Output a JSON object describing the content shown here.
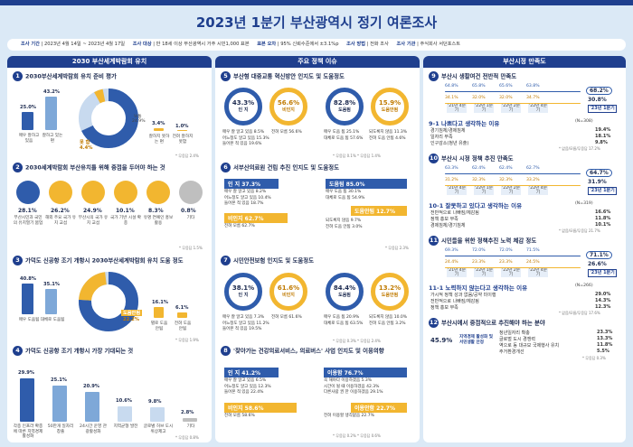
{
  "title": "2023년 1분기 부산광역시 정기 여론조사",
  "info": {
    "period_label": "조사 기간",
    "period": "2023년 4월 14일 ~ 2023년 4월 17일",
    "target_label": "조사 대상",
    "target": "만 18세 이상 부산광역시 거주 시민1,000 표본",
    "error_label": "표본 오차",
    "error": "95% 신뢰수준에서 ±3.1%p",
    "method_label": "조사 방법",
    "method": "전화 조사",
    "org_label": "조사 기관",
    "org": "주식회사 서던포스트"
  },
  "col1": {
    "header": "2030 부산세계박람회 유치",
    "q1": {
      "num": "1",
      "title": "2030부산세계박람회 유치 준비 평가",
      "bars": [
        {
          "label": "매우 잘하고 있음",
          "value": "25.0%",
          "v": 25.0
        },
        {
          "label": "잘하고 있는 편",
          "value": "43.2%",
          "v": 43.2
        }
      ],
      "good": {
        "label": "잘 함",
        "value": "68.3%"
      },
      "bad": {
        "label": "못 함",
        "value": "4.4%"
      },
      "mid_label": "보통",
      "mid_value": "24.9%",
      "bars2": [
        {
          "label": "잘하지 못하는 편",
          "value": "3.4%",
          "v": 3.4
        },
        {
          "label": "전혀 잘하지 못함",
          "value": "1.0%",
          "v": 1.0
        }
      ],
      "note": "* 무응답 2.4%"
    },
    "q2": {
      "num": "2",
      "title": "2030세계박람회 부산유치를 위해 중점을 두어야 하는 것",
      "items": [
        {
          "value": "28.1%",
          "label": "부산시민과 국민의 유치열기 붐업"
        },
        {
          "value": "26.2%",
          "label": "해외 주요 국가 유치 교섭"
        },
        {
          "value": "24.9%",
          "label": "부산시의 국가 유치 교섭"
        },
        {
          "value": "10.1%",
          "label": "국가 기반 시설 확충"
        },
        {
          "value": "8.3%",
          "label": "유명 연예인 홍보 활용"
        },
        {
          "value": "0.8%",
          "label": "기타"
        }
      ],
      "note": "* 무응답 1.5%"
    },
    "q3": {
      "num": "3",
      "title": "가덕도 신공항 조기 개항시 2030부산세계박람회 유치 도움 정도",
      "bars": [
        {
          "label": "매우 도움됨",
          "value": "40.8%",
          "v": 40.8
        },
        {
          "label": "대체로 도움됨",
          "value": "35.1%",
          "v": 35.1
        }
      ],
      "help": {
        "label": "도움됨",
        "value": "75.9%"
      },
      "nohelp": {
        "label": "도움안됨",
        "value": "22.2%"
      },
      "bars2": [
        {
          "label": "별로 도움 안됨",
          "value": "16.1%",
          "v": 16.1
        },
        {
          "label": "전혀 도움 안됨",
          "value": "6.1%",
          "v": 6.1
        }
      ],
      "note": "* 무응답 1.9%"
    },
    "q4": {
      "num": "4",
      "title": "가덕도 신공항 조기 개항시 가장 기대되는 것",
      "items": [
        {
          "value": "29.9%",
          "label": "각종 인프라 확충에 따른 지역경제 활성화",
          "v": 29.9
        },
        {
          "value": "25.1%",
          "label": "50만개 일자리 창출",
          "v": 25.1
        },
        {
          "value": "20.9%",
          "label": "24시간 운영 관광활성화",
          "v": 20.9
        },
        {
          "value": "10.6%",
          "label": "지역균형 발전",
          "v": 10.6
        },
        {
          "value": "9.8%",
          "label": "글로벌 허브 도시 위상제고",
          "v": 9.8
        },
        {
          "value": "2.8%",
          "label": "기타",
          "v": 2.8
        }
      ],
      "note": "* 무응답 0.8%"
    }
  },
  "col2": {
    "header": "주요 정책 이슈",
    "q5": {
      "num": "5",
      "title": "부산형 대중교통 혁신방안 인지도 및 도움정도",
      "c1": {
        "value": "43.3%",
        "label": "인 지"
      },
      "c2": {
        "value": "56.6%",
        "label": "비인지"
      },
      "c3": {
        "value": "82.8%",
        "label": "도움됨"
      },
      "c4": {
        "value": "15.9%",
        "label": "도움안됨"
      },
      "left_rows": [
        "매우 잘 알고 있음 8.5%",
        "어느정도 알고 있음 15.3%",
        "들어본 적 있음 19.6%",
        "전혀 모름 56.6%"
      ],
      "right_rows": [
        "매우 도움 됨 25.1%",
        "대체로 도움 됨 57.6%",
        "되도록지 않음 11.3%",
        "전혀 도움 안됨 4.6%"
      ],
      "note": "* 무응답 0.1%   * 무응답 1.4%"
    },
    "q6": {
      "num": "6",
      "title": "서부산의료원 건립 추진 인지도 및 도움정도",
      "a1": "인 지 37.3%",
      "a2": "비인지 62.7%",
      "b1": "도움됨 85.0%",
      "b2": "도움안됨 12.7%",
      "left_rows": [
        "매우 잘 알고 있음 8.2%",
        "어느정도 알고 있음 10.4%",
        "들어본 적 있음 18.7%",
        "전혀 모름 62.7%"
      ],
      "right_rows": [
        "매우 도움 됨 30.1%",
        "대체로 도움 됨 54.9%",
        "되도록지 않음 9.7%",
        "전혀 도움 안됨 3.0%"
      ],
      "note": "* 무응답 2.3%"
    },
    "q7": {
      "num": "7",
      "title": "시민안전보험 인지도 및 도움정도",
      "c1": {
        "value": "38.1%",
        "label": "인 지"
      },
      "c2": {
        "value": "61.6%",
        "label": "비인지"
      },
      "c3": {
        "value": "84.4%",
        "label": "도움됨"
      },
      "c4": {
        "value": "13.2%",
        "label": "도움안됨"
      },
      "left_rows": [
        "매우 잘 알고 있음 7.3%",
        "어느정도 알고 있음 11.2%",
        "들어본 적 있음 19.5%",
        "전혀 모름 61.6%"
      ],
      "right_rows": [
        "매우 도움 됨 20.9%",
        "대체로 도움 됨 63.5%",
        "되도록지 않음 10.0%",
        "전혀 도움 안됨 3.2%"
      ],
      "note": "* 무응답 0.3%   * 무응답 2.4%"
    },
    "q8": {
      "num": "8",
      "title": "'찾아가는 건강의료서비스, 의료버스' 사업 인지도 및 이용의향",
      "a1": "인 지 41.2%",
      "a2": "비인지 58.6%",
      "b1": "이용함 76.7%",
      "b2": "이용안함 22.7%",
      "left_rows": [
        "매우 잘 알고 있음 6.5%",
        "어느정도 알고 있음 12.3%",
        "들어본 적 있음 22.4%",
        "전혀 모름 58.6%"
      ],
      "right_rows": [
        "꼭 해야다 이용하겠음 5.3%",
        "시간이 될 때 이용하겠음 42.3%",
        "다른사람 권 한 이용하겠음 29.1%",
        "전혀 이용할 생각없음 22.7%"
      ],
      "note": "* 무응답 0.2%   * 무응답 0.6%"
    }
  },
  "col3": {
    "header": "부산시정 만족도",
    "q9": {
      "num": "9",
      "title": "부산시 생활여건 전반적 만족도",
      "good_vals": [
        "64.8%",
        "65.8%",
        "65.6%",
        "63.8%"
      ],
      "bad_vals": [
        "34.1%",
        "32.0%",
        "32.0%",
        "34.7%"
      ],
      "final_good": "68.2%",
      "final_bad": "30.8%",
      "periods": [
        "'21년 4분기",
        "'22년 1분기",
        "'22년 2분기",
        "'22년 4분기"
      ],
      "current": "'23년 1분기"
    },
    "q9_1": {
      "num": "9-1",
      "title": "나쁘다고 생각하는 이유",
      "n": "(N=308)",
      "rows": [
        [
          "경기침체/경제침체",
          "19.4%"
        ],
        [
          "일자리 부족",
          "18.1%"
        ],
        [
          "인구감소(청년 유출)",
          "9.8%"
        ]
      ],
      "note": "* 없음/모름/무응답 17.2%"
    },
    "q10": {
      "num": "10",
      "title": "부산시 시정 정책 추진 만족도",
      "good_vals": [
        "63.3%",
        "62.4%",
        "62.4%",
        "62.7%"
      ],
      "bad_vals": [
        "31.2%",
        "32.3%",
        "32.3%",
        "33.2%"
      ],
      "final_good": "64.7%",
      "final_bad": "31.9%",
      "periods": [
        "'21년 4분기",
        "'22년 1분기",
        "'22년 2분기",
        "'22년 4분기"
      ],
      "current": "'23년 1분기"
    },
    "q10_1": {
      "num": "10-1",
      "title": "잘못하고 있다고 생각하는 이유",
      "n": "(N=319)",
      "rows": [
        [
          "전반적으로 나빠짐/체감됨",
          "16.6%"
        ],
        [
          "정책 홍보 부족",
          "11.8%"
        ],
        [
          "경제침체/경기침체",
          "10.1%"
        ]
      ],
      "note": "* 없음/모름/무응답 21.7%"
    },
    "q11": {
      "num": "11",
      "title": "시민들을 위한 정책추진 노력 체감 정도",
      "good_vals": [
        "69.3%",
        "72.0%",
        "72.0%",
        "71.5%"
      ],
      "bad_vals": [
        "24.4%",
        "23.3%",
        "23.3%",
        "24.5%"
      ],
      "final_good": "71.1%",
      "final_bad": "26.6%",
      "periods": [
        "'21년 4분기",
        "'22년 1분기",
        "'22년 2분기",
        "'22년 4분기"
      ],
      "current": "'23년 1분기"
    },
    "q11_1": {
      "num": "11-1",
      "title": "노력하지 않는다고 생각하는 이유",
      "n": "(N=266)",
      "rows": [
        [
          "가시적 정책 성과 없음/공약 미이행",
          "29.0%"
        ],
        [
          "전반적으로 나빠짐/체감됨",
          "14.3%"
        ],
        [
          "정책 홍보 부족",
          "12.3%"
        ]
      ],
      "note": "* 없음/모름/무응답 17.6%"
    },
    "q12": {
      "num": "12",
      "title": "부산시에서 중점적으로 추진해야 하는 분야",
      "big_value": "45.9%",
      "big_label": "지역경제 활성화 및 서민생활 안정",
      "rows": [
        [
          "청년일자리 확충",
          "23.3%"
        ],
        [
          "글로벌 도시 경쟁력",
          "13.3%"
        ],
        [
          "역으로 동 대규모 국제행사 유치",
          "11.8%"
        ],
        [
          "주거환경개선",
          "5.5%"
        ]
      ],
      "note": "* 무응답 0.3%"
    }
  }
}
